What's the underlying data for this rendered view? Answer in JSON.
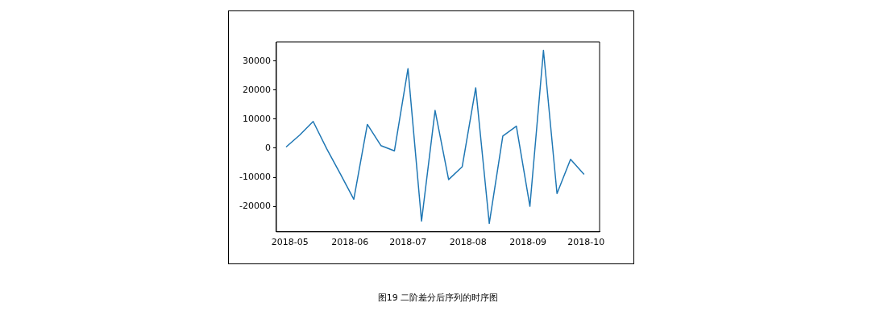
{
  "chart_data": {
    "type": "line",
    "title": "图19 二阶差分后序列的时序图",
    "x": [
      "2018-04-29",
      "2018-05-06",
      "2018-05-13",
      "2018-05-20",
      "2018-05-27",
      "2018-06-03",
      "2018-06-10",
      "2018-06-17",
      "2018-06-24",
      "2018-07-01",
      "2018-07-08",
      "2018-07-15",
      "2018-07-22",
      "2018-07-29",
      "2018-08-05",
      "2018-08-12",
      "2018-08-19",
      "2018-08-26",
      "2018-09-02",
      "2018-09-09",
      "2018-09-16",
      "2018-09-23",
      "2018-09-30"
    ],
    "series": [
      {
        "color": "#1f77b4",
        "values": [
          400,
          4500,
          9200,
          -200,
          -8800,
          -17600,
          8200,
          900,
          -900,
          27400,
          -25100,
          13000,
          -10800,
          -6400,
          20800,
          -25900,
          4200,
          7600,
          -20000,
          33700,
          -15600,
          -3800,
          -9000
        ]
      }
    ],
    "xlim": [
      "2018-04-24",
      "2018-10-08"
    ],
    "xticks": [
      "2018-05",
      "2018-06",
      "2018-07",
      "2018-08",
      "2018-09",
      "2018-10"
    ],
    "ylim": [
      -28800,
      36600
    ],
    "yticks": [
      -20000,
      -10000,
      0,
      10000,
      20000,
      30000
    ],
    "grid": false,
    "legend": false
  }
}
